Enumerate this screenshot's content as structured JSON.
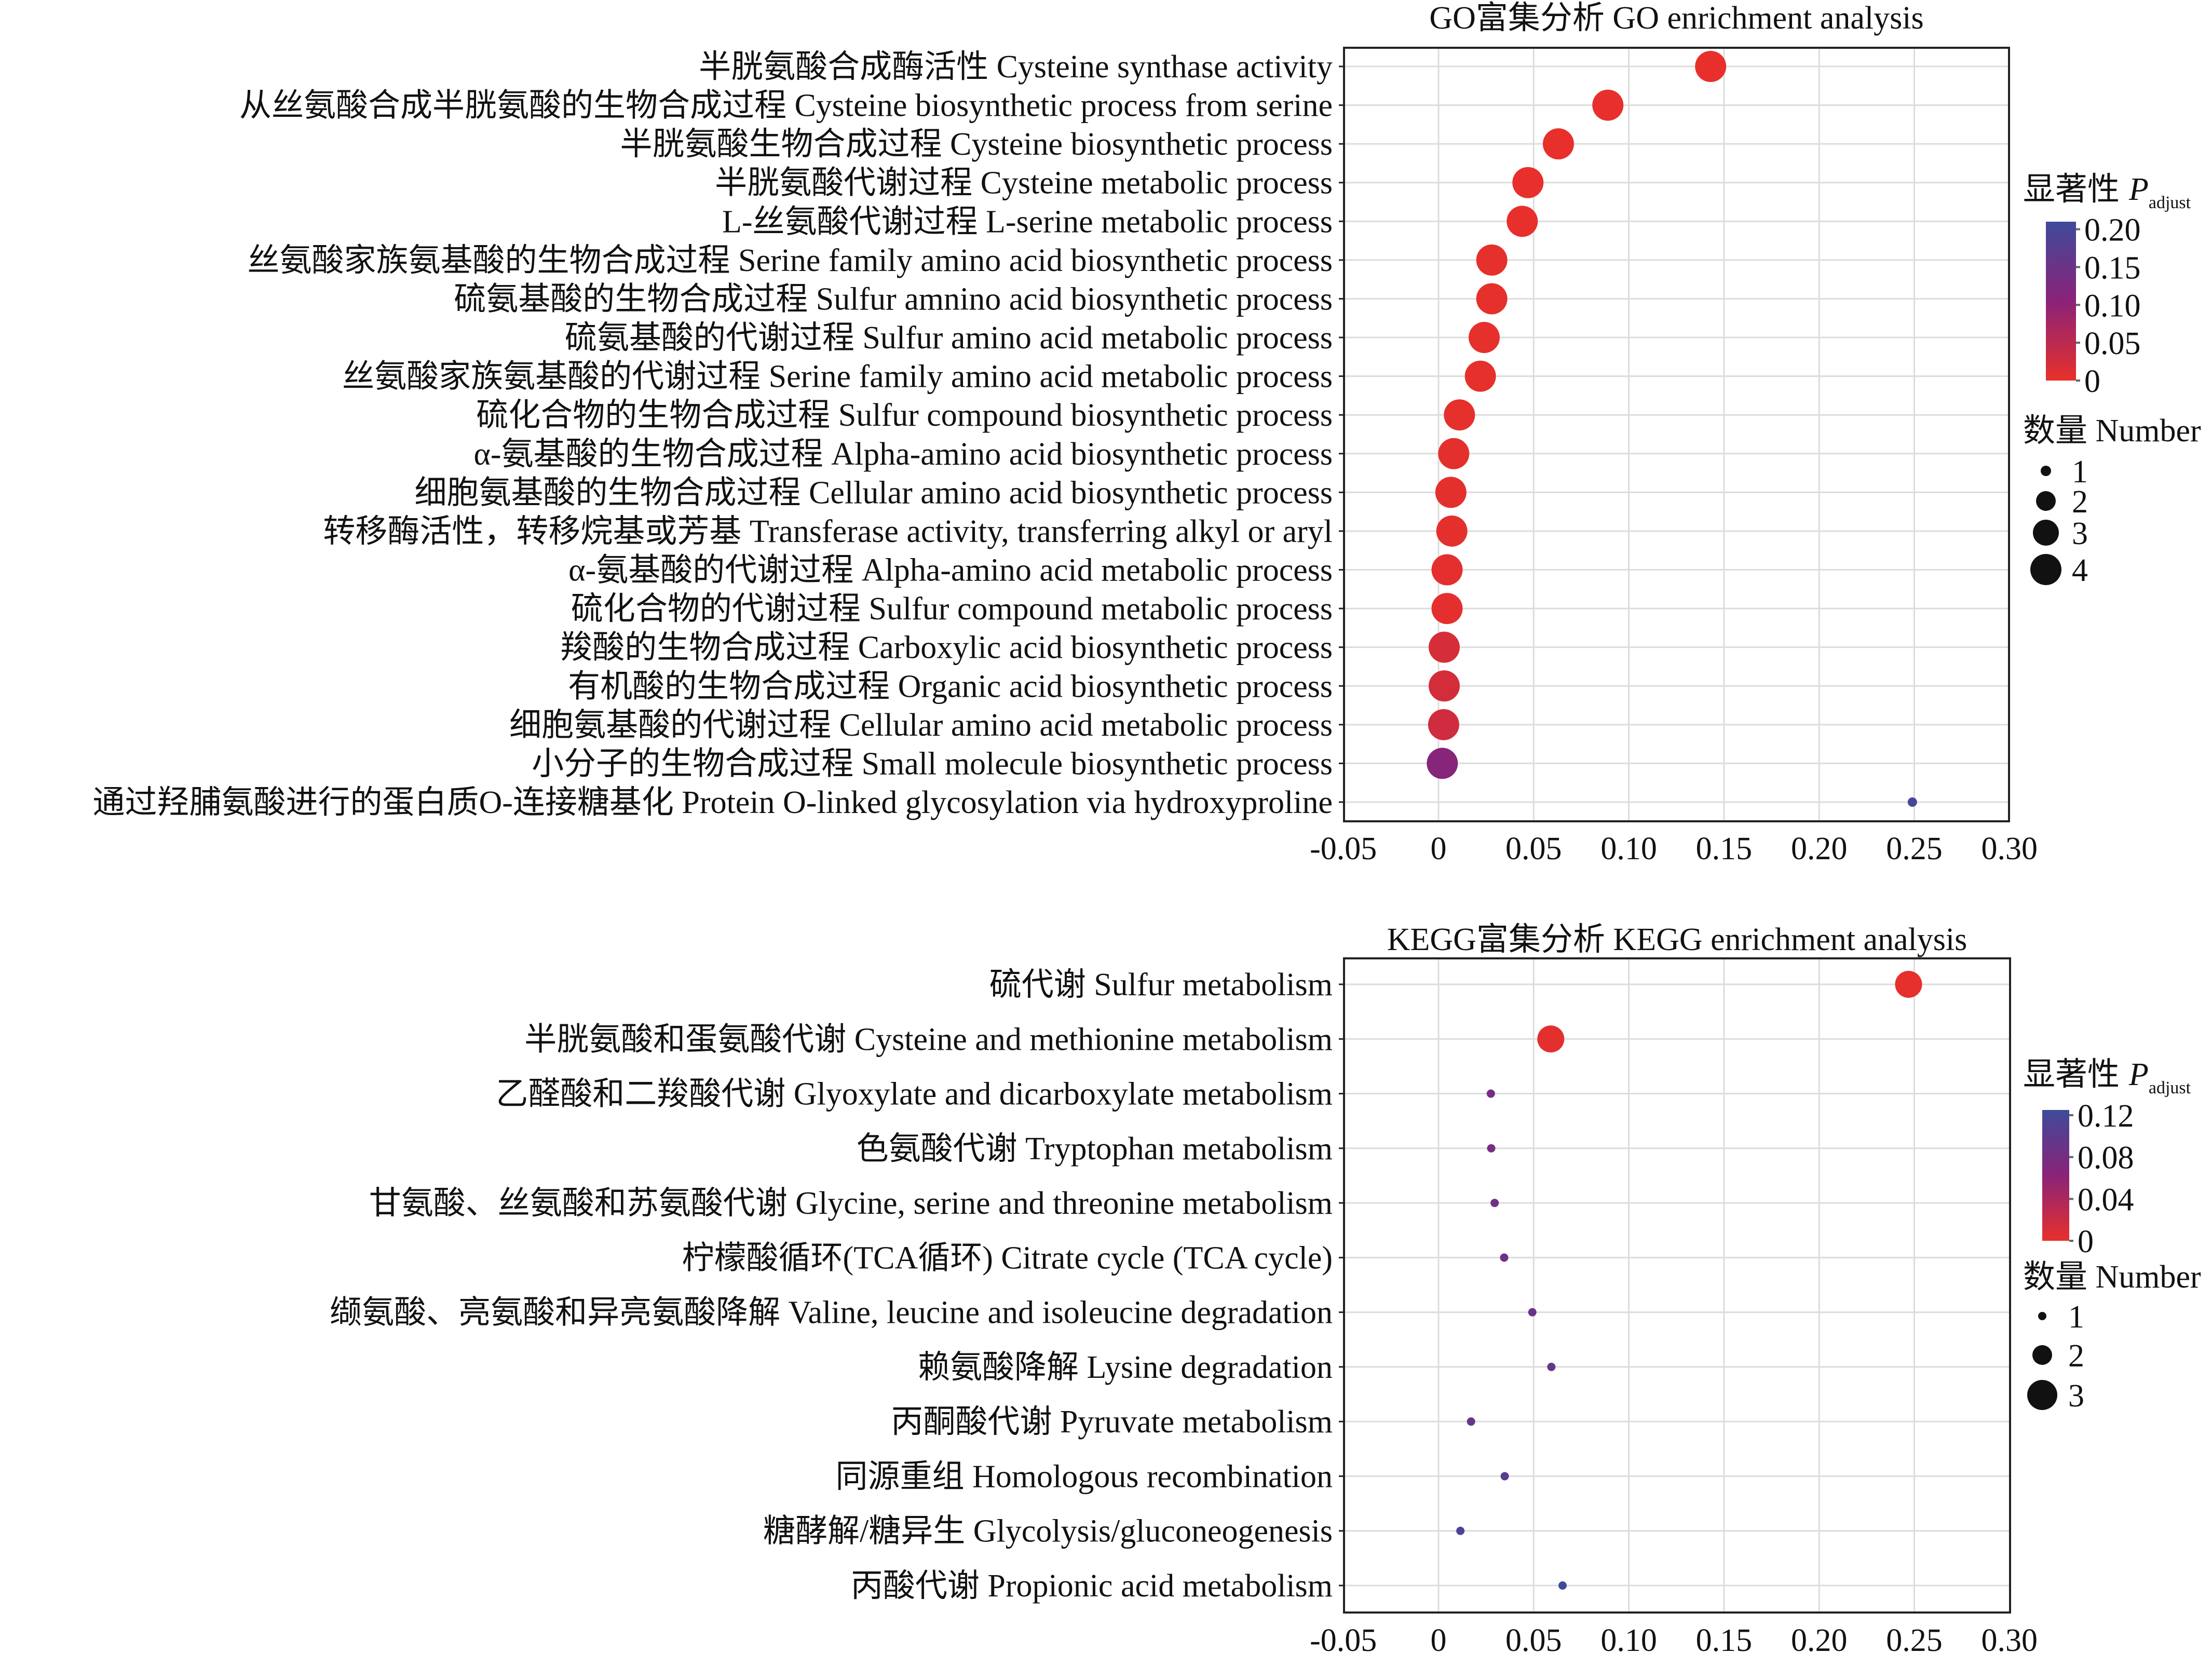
{
  "chart_data": [
    {
      "type": "scatter",
      "id": "go",
      "title": "GO富集分析 GO enrichment analysis",
      "xlabel": "",
      "ylabel": "",
      "xlim": [
        -0.05,
        0.3
      ],
      "xticks": [
        "-0.05",
        "0",
        "0.05",
        "0.10",
        "0.15",
        "0.20",
        "0.25",
        "0.30"
      ],
      "xtick_values": [
        -0.05,
        0,
        0.05,
        0.1,
        0.15,
        0.2,
        0.25,
        0.3
      ],
      "grid": true,
      "categories": [
        "半胱氨酸合成酶活性 Cysteine synthase activity",
        "从丝氨酸合成半胱氨酸的生物合成过程 Cysteine biosynthetic process from serine",
        "半胱氨酸生物合成过程 Cysteine biosynthetic process",
        "半胱氨酸代谢过程 Cysteine metabolic process",
        "L-丝氨酸代谢过程 L-serine metabolic process",
        "丝氨酸家族氨基酸的生物合成过程 Serine family amino acid biosynthetic process",
        "硫氨基酸的生物合成过程 Sulfur amnino acid biosynthetic process",
        "硫氨基酸的代谢过程 Sulfur amino acid metabolic process",
        "丝氨酸家族氨基酸的代谢过程 Serine family amino acid metabolic process",
        "硫化合物的生物合成过程 Sulfur compound biosynthetic process",
        "α-氨基酸的生物合成过程 Alpha-amino acid biosynthetic process",
        "细胞氨基酸的生物合成过程 Cellular amino acid biosynthetic process",
        "转移酶活性，转移烷基或芳基 Transferase activity, transferring alkyl or aryl",
        "α-氨基酸的代谢过程 Alpha-amino acid metabolic process",
        "硫化合物的代谢过程 Sulfur compound metabolic process",
        "羧酸的生物合成过程 Carboxylic acid biosynthetic process",
        "有机酸的生物合成过程 Organic acid biosynthetic process",
        "细胞氨基酸的代谢过程 Cellular amino acid metabolic process",
        "小分子的生物合成过程 Small molecule biosynthetic process",
        "通过羟脯氨酸进行的蛋白质O-连接糖基化 Protein O-linked glycosylation via hydroxyproline"
      ],
      "x": [
        0.143,
        0.089,
        0.063,
        0.047,
        0.044,
        0.028,
        0.028,
        0.024,
        0.022,
        0.011,
        0.008,
        0.0065,
        0.007,
        0.0045,
        0.0045,
        0.003,
        0.003,
        0.0027,
        0.002,
        0.249
      ],
      "number": [
        4,
        4,
        4,
        4,
        4,
        4,
        4,
        4,
        4,
        4,
        4,
        4,
        4,
        4,
        4,
        4,
        4,
        4,
        4,
        1
      ],
      "padj": [
        0.001,
        0.001,
        0.001,
        0.001,
        0.001,
        0.002,
        0.002,
        0.002,
        0.003,
        0.003,
        0.004,
        0.004,
        0.004,
        0.005,
        0.005,
        0.02,
        0.022,
        0.028,
        0.11,
        0.2
      ],
      "color_legend": {
        "title": "显著性",
        "symbol": "P",
        "subscript": "adjust",
        "ticks": [
          "0.20",
          "0.15",
          "0.10",
          "0.05",
          "0"
        ],
        "tick_values": [
          0.2,
          0.15,
          0.1,
          0.05,
          0
        ],
        "max": 0.21
      },
      "size_legend": {
        "title": "数量 Number",
        "labels": [
          "1",
          "2",
          "3",
          "4"
        ],
        "values": [
          1,
          2,
          3,
          4
        ]
      }
    },
    {
      "type": "scatter",
      "id": "kegg",
      "title": "KEGG富集分析 KEGG enrichment analysis",
      "xlabel": "",
      "ylabel": "",
      "xlim": [
        -0.05,
        0.3
      ],
      "xticks": [
        "-0.05",
        "0",
        "0.05",
        "0.10",
        "0.15",
        "0.20",
        "0.25",
        "0.30"
      ],
      "xtick_values": [
        -0.05,
        0,
        0.05,
        0.1,
        0.15,
        0.2,
        0.25,
        0.3
      ],
      "grid": true,
      "categories": [
        "硫代谢 Sulfur metabolism",
        "半胱氨酸和蛋氨酸代谢 Cysteine and methionine metabolism",
        "乙醛酸和二羧酸代谢 Glyoxylate and dicarboxylate metabolism",
        "色氨酸代谢 Tryptophan metabolism",
        "甘氨酸、丝氨酸和苏氨酸代谢 Glycine, serine and threonine metabolism",
        "柠檬酸循环(TCA循环) Citrate cycle (TCA cycle)",
        "缬氨酸、亮氨酸和异亮氨酸降解 Valine, leucine and isoleucine degradation",
        "赖氨酸降解 Lysine degradation",
        "丙酮酸代谢 Pyruvate metabolism",
        "同源重组 Homologous recombination",
        "糖酵解/糖异生 Glycolysis/gluconeogenesis",
        "丙酸代谢 Propionic acid metabolism"
      ],
      "x": [
        0.247,
        0.059,
        0.0275,
        0.0277,
        0.0295,
        0.0345,
        0.0493,
        0.0593,
        0.0171,
        0.0348,
        0.0115,
        0.0652
      ],
      "number": [
        3,
        3,
        1,
        1,
        1,
        1,
        1,
        1,
        1,
        1,
        1,
        1
      ],
      "padj": [
        0.001,
        0.003,
        0.08,
        0.08,
        0.085,
        0.085,
        0.09,
        0.095,
        0.095,
        0.105,
        0.115,
        0.125
      ],
      "color_legend": {
        "title": "显著性",
        "symbol": "P",
        "subscript": "adjust",
        "ticks": [
          "0.12",
          "0.08",
          "0.04",
          "0"
        ],
        "tick_values": [
          0.12,
          0.08,
          0.04,
          0
        ],
        "max": 0.125
      },
      "size_legend": {
        "title": "数量 Number",
        "labels": [
          "1",
          "2",
          "3"
        ],
        "values": [
          1,
          2,
          3
        ]
      }
    }
  ],
  "colors": {
    "low": "#e8302a",
    "mid": "#8a2378",
    "high": "#3f4a9a",
    "grid": "#dcdcdc",
    "marker_legend": "#111111"
  }
}
